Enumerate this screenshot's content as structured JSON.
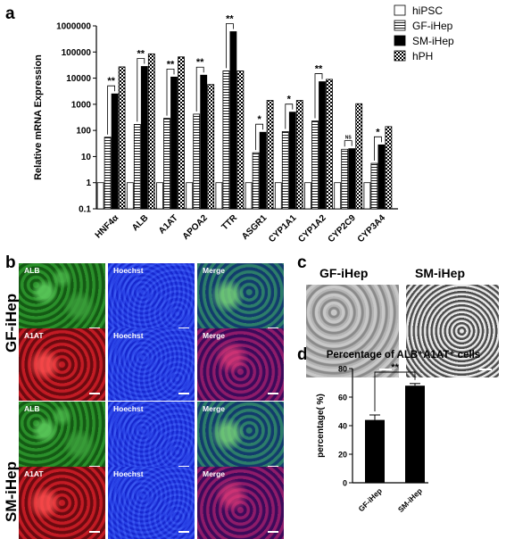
{
  "panels": {
    "a": "a",
    "b": "b",
    "c": "c",
    "d": "d"
  },
  "micrographs": {
    "row_labels": [
      "GF-iHep",
      "SM-iHep"
    ],
    "alb": "ALB",
    "a1at": "A1AT",
    "hoechst": "Hoechst",
    "merge": "Merge"
  },
  "sem": {
    "gf": "GF-iHep",
    "sm": "SM-iHep"
  },
  "chart_data": [
    {
      "type": "bar",
      "ylabel": "Relative mRNA Expression",
      "yscale": "log",
      "ylim": [
        0.1,
        1000000
      ],
      "yticks": [
        "0.1",
        "1",
        "10",
        "100",
        "1000",
        "10000",
        "100000",
        "1000000"
      ],
      "categories": [
        "HNF4α",
        "ALB",
        "A1AT",
        "APOA2",
        "TTR",
        "ASGR1",
        "CYP1A1",
        "CYP1A2",
        "CYP2C9",
        "CYP3A4"
      ],
      "series": [
        {
          "name": "hiPSC",
          "color": "#ffffff",
          "pattern": "empty",
          "values": [
            1,
            1,
            1,
            1,
            1,
            1,
            1,
            1,
            1,
            1
          ]
        },
        {
          "name": "GF-iHep",
          "color": "#ffffff",
          "pattern": "horizontal",
          "values": [
            55,
            170,
            290,
            420,
            19000,
            14,
            90,
            230,
            19,
            5.5
          ]
        },
        {
          "name": "SM-iHep",
          "color": "#000000",
          "pattern": "solid",
          "values": [
            2500,
            28000,
            11000,
            13000,
            600000,
            85,
            500,
            7300,
            20,
            28
          ]
        },
        {
          "name": "hPH",
          "color": "#000000",
          "pattern": "checker",
          "values": [
            27000,
            85000,
            65000,
            5700,
            19000,
            1400,
            1400,
            9000,
            1050,
            140
          ]
        }
      ],
      "significance": [
        "**",
        "**",
        "**",
        "**",
        "**",
        "*",
        "*",
        "**",
        "NS",
        "*"
      ],
      "legend_position": "top-right"
    },
    {
      "type": "bar",
      "title": "Percentage of ALB⁺A1AT⁺ cells",
      "ylabel": "percentage( %)",
      "ylim": [
        0,
        80
      ],
      "yticks": [
        "0",
        "20",
        "40",
        "60",
        "80"
      ],
      "categories": [
        "GF-iHep",
        "SM-iHep"
      ],
      "values": [
        44,
        68
      ],
      "errors": [
        3.5,
        1.5
      ],
      "color": "#000000",
      "significance": "**"
    }
  ]
}
